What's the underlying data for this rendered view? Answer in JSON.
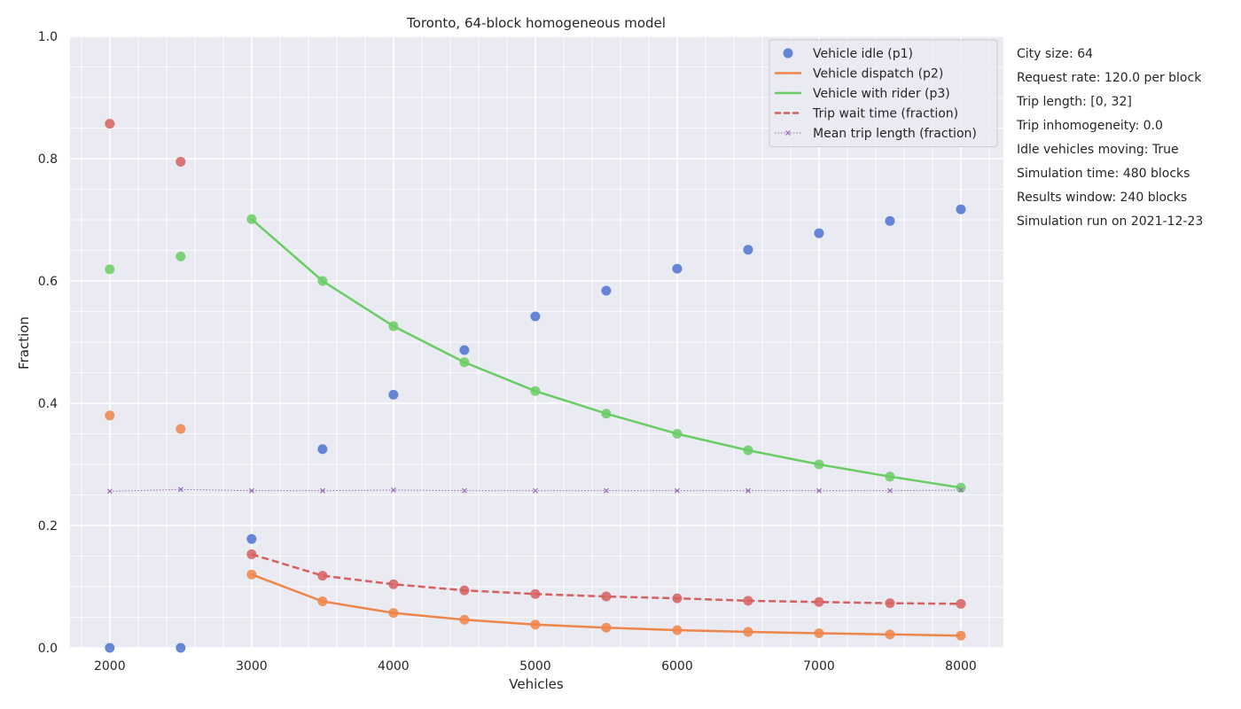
{
  "chart_data": {
    "type": "scatter",
    "title": "Toronto, 64-block homogeneous model",
    "xlabel": "Vehicles",
    "ylabel": "Fraction",
    "xlim": [
      1720,
      8300
    ],
    "ylim": [
      0,
      1
    ],
    "xticks": [
      2000,
      3000,
      4000,
      5000,
      6000,
      7000,
      8000
    ],
    "yticks": [
      0.0,
      0.2,
      0.4,
      0.6,
      0.8,
      1.0
    ],
    "grid": true,
    "legend_position": "top-right",
    "x": [
      2000,
      2500,
      3000,
      3500,
      4000,
      4500,
      5000,
      5500,
      6000,
      6500,
      7000,
      7500,
      8000
    ],
    "series": [
      {
        "name": "Vehicle idle (p1)",
        "kind": "points",
        "color": "#4c72d0",
        "points": [
          0.0,
          0.0,
          0.178,
          0.325,
          0.414,
          0.487,
          0.542,
          0.584,
          0.62,
          0.651,
          0.678,
          0.698,
          0.717
        ],
        "fit": null
      },
      {
        "name": "Vehicle dispatch (p2)",
        "kind": "line",
        "color": "#ee854a",
        "points": [
          0.38,
          0.358,
          0.12,
          0.076,
          0.057,
          0.046,
          0.038,
          0.033,
          0.029,
          0.026,
          0.024,
          0.022,
          0.02
        ],
        "fit": [
          null,
          null,
          0.12,
          0.076,
          0.057,
          0.046,
          0.038,
          0.033,
          0.029,
          0.026,
          0.024,
          0.022,
          0.02
        ]
      },
      {
        "name": "Vehicle with rider (p3)",
        "kind": "line",
        "color": "#6acc64",
        "points": [
          0.619,
          0.64,
          0.701,
          0.6,
          0.526,
          0.467,
          0.42,
          0.383,
          0.35,
          0.323,
          0.3,
          0.28,
          0.262
        ],
        "fit": [
          null,
          null,
          0.701,
          0.6,
          0.526,
          0.467,
          0.42,
          0.383,
          0.35,
          0.323,
          0.3,
          0.28,
          0.262
        ]
      },
      {
        "name": "Trip wait time (fraction)",
        "kind": "dashed",
        "color": "#d65f5f",
        "points": [
          0.857,
          0.795,
          0.153,
          0.118,
          0.104,
          0.094,
          0.088,
          0.084,
          0.081,
          0.077,
          0.075,
          0.073,
          0.072
        ],
        "fit": [
          null,
          null,
          0.153,
          0.118,
          0.104,
          0.094,
          0.088,
          0.084,
          0.081,
          0.077,
          0.075,
          0.073,
          0.072
        ]
      },
      {
        "name": "Mean trip length (fraction)",
        "kind": "dotted-x",
        "color": "#956cb4",
        "points": [
          0.256,
          0.259,
          0.257,
          0.257,
          0.258,
          0.257,
          0.257,
          0.257,
          0.257,
          0.257,
          0.257,
          0.257,
          0.258
        ],
        "fit": [
          0.256,
          0.259,
          0.257,
          0.257,
          0.258,
          0.257,
          0.257,
          0.257,
          0.257,
          0.257,
          0.257,
          0.257,
          0.258
        ]
      }
    ],
    "annotations": [
      "City size: 64",
      "Request rate: 120.0 per block",
      "Trip length: [0, 32]",
      "Trip inhomogeneity: 0.0",
      "Idle vehicles moving: True",
      "Simulation time: 480 blocks",
      "Results window: 240 blocks",
      "Simulation run on 2021-12-23"
    ]
  }
}
